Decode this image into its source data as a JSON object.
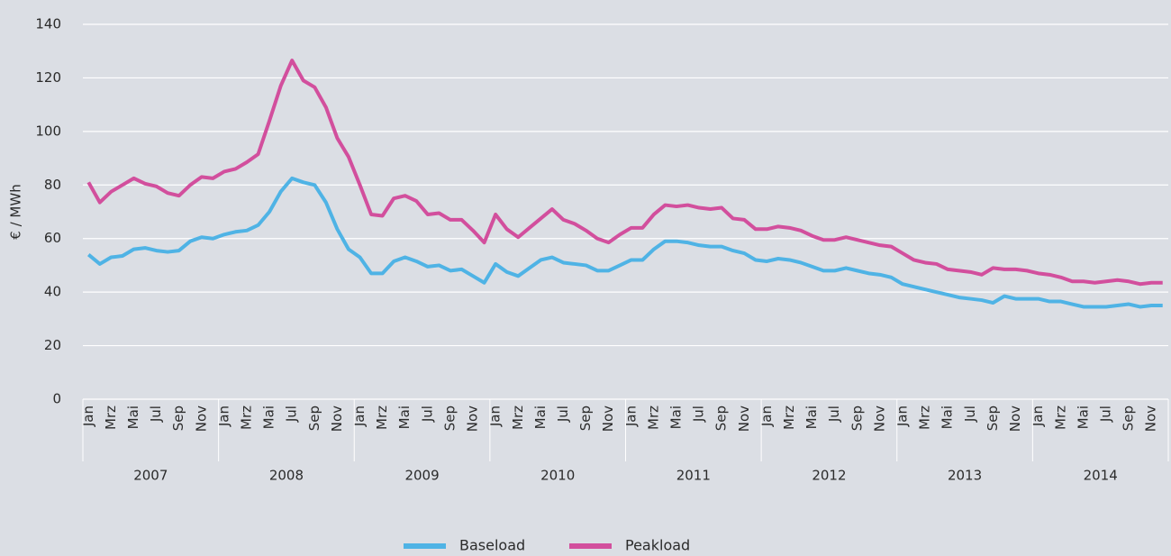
{
  "chart_data": {
    "type": "line",
    "y_label": "€ / MWh",
    "categories": [
      "Jan",
      null,
      "Mrz",
      null,
      "Mai",
      null,
      "Jul",
      null,
      "Sep",
      null,
      "Nov",
      null,
      "Jan",
      null,
      "Mrz",
      null,
      "Mai",
      null,
      "Jul",
      null,
      "Sep",
      null,
      "Nov",
      null,
      "Jan",
      null,
      "Mrz",
      null,
      "Mai",
      null,
      "Jul",
      null,
      "Sep",
      null,
      "Nov",
      null,
      "Jan",
      null,
      "Mrz",
      null,
      "Mai",
      null,
      "Jul",
      null,
      "Sep",
      null,
      "Nov",
      null,
      "Jan",
      null,
      "Mrz",
      null,
      "Mai",
      null,
      "Jul",
      null,
      "Sep",
      null,
      "Nov",
      null,
      "Jan",
      null,
      "Mrz",
      null,
      "Mai",
      null,
      "Jul",
      null,
      "Sep",
      null,
      "Nov",
      null,
      "Jan",
      null,
      "Mrz",
      null,
      "Mai",
      null,
      "Jul",
      null,
      "Sep",
      null,
      "Nov",
      null,
      "Jan",
      null,
      "Mrz",
      null,
      "Mai",
      null,
      "Jul",
      null,
      "Sep",
      null,
      "Nov",
      null
    ],
    "groups": [
      "2007",
      "2008",
      "2009",
      "2010",
      "2011",
      "2012",
      "2013",
      "2014"
    ],
    "series": [
      {
        "name": "Baseload",
        "color": "#4fb3e5",
        "values": [
          54,
          50.5,
          53,
          53.5,
          56,
          56.5,
          55.5,
          55,
          55.5,
          59,
          60.5,
          60,
          61.5,
          62.5,
          63,
          65,
          70,
          77.5,
          82.5,
          81,
          80,
          73.5,
          63.5,
          56,
          53,
          47,
          47,
          51.5,
          53,
          51.5,
          49.5,
          50,
          48,
          48.5,
          46,
          43.5,
          50.5,
          47.5,
          46,
          49,
          52,
          53,
          51,
          50.5,
          50,
          48,
          48,
          50,
          52,
          52,
          56,
          59,
          59,
          58.5,
          57.5,
          57,
          57,
          55.5,
          54.5,
          52,
          51.5,
          52.5,
          52,
          51,
          49.5,
          48,
          48,
          49,
          48,
          47,
          46.5,
          45.5,
          43,
          42,
          41,
          40,
          39,
          38,
          37.5,
          37,
          36,
          38.5,
          37.5,
          37.5,
          37.5,
          36.5,
          36.5,
          35.5,
          34.5,
          34.5,
          34.5,
          35,
          35.5,
          34.5,
          35,
          35
        ]
      },
      {
        "name": "Peakload",
        "color": "#d24f9d",
        "values": [
          81,
          73.5,
          77.5,
          80,
          82.5,
          80.5,
          79.5,
          77,
          76,
          80,
          83,
          82.5,
          85,
          86,
          88.5,
          91.5,
          104,
          117,
          126.5,
          119,
          116.5,
          109,
          97.5,
          90.5,
          80,
          69,
          68.5,
          75,
          76,
          74,
          69,
          69.5,
          67,
          67,
          63,
          58.5,
          69,
          63.5,
          60.5,
          64,
          67.5,
          71,
          67,
          65.5,
          63,
          60,
          58.5,
          61.5,
          64,
          64,
          69,
          72.5,
          72,
          72.5,
          71.5,
          71,
          71.5,
          67.5,
          67,
          63.5,
          63.5,
          64.5,
          64,
          63,
          61,
          59.5,
          59.5,
          60.5,
          59.5,
          58.5,
          57.5,
          57,
          54.5,
          52,
          51,
          50.5,
          48.5,
          48,
          47.5,
          46.5,
          49,
          48.5,
          48.5,
          48,
          47,
          46.5,
          45.5,
          44,
          44,
          43.5,
          44,
          44.5,
          44,
          43,
          43.5,
          43.5
        ]
      }
    ],
    "ylim": [
      0,
      140
    ],
    "yticks": [
      0,
      20,
      40,
      60,
      80,
      100,
      120,
      140
    ],
    "grid": true,
    "legend": "bottom"
  }
}
